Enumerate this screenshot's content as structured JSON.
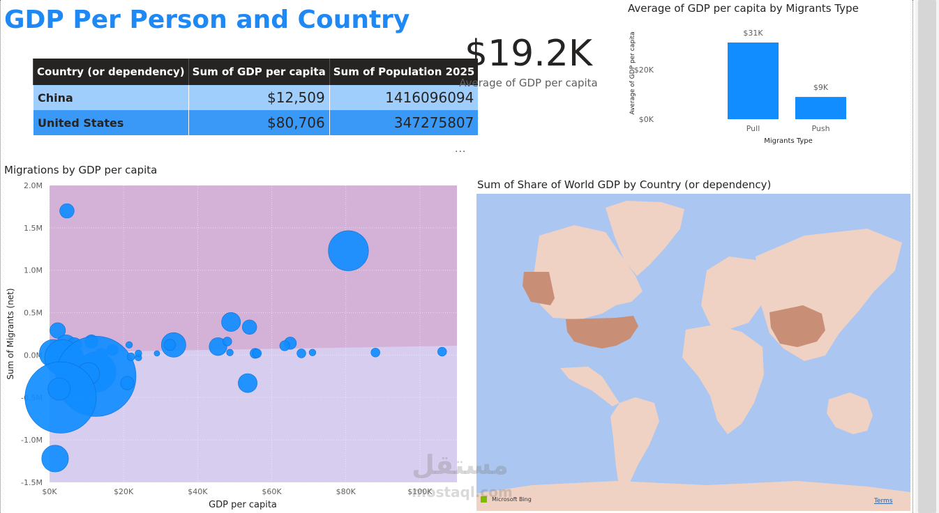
{
  "page_title": "GDP Per Person and Country",
  "table": {
    "headers": [
      "Country (or dependency)",
      "Sum of GDP per capita",
      "Sum of Population 2025"
    ],
    "rows": [
      {
        "country": "China",
        "gdp": "$12,509",
        "population": "1416096094"
      },
      {
        "country": "United States",
        "gdp": "$80,706",
        "population": "347275807"
      }
    ]
  },
  "kpi": {
    "value": "$19.2K",
    "label": "Average of GDP per capita"
  },
  "visual_menu": "...",
  "bar_chart": {
    "title": "Average of GDP per capita by Migrants Type",
    "chart_data": {
      "type": "bar",
      "title": "Average of GDP per capita by Migrants Type",
      "categories": [
        "Pull",
        "Push"
      ],
      "values": [
        31000,
        9000
      ],
      "data_labels": [
        "$31K",
        "$9K"
      ],
      "xlabel": "Migrants Type",
      "ylabel": "Average of GDP per capita",
      "yticks": [
        "$0K",
        "$20K"
      ],
      "ylim": [
        0,
        31000
      ],
      "color": "#118dff"
    }
  },
  "scatter_chart": {
    "title": "Migrations by GDP per capita",
    "chart_data": {
      "type": "scatter",
      "title": "Migrations by GDP per capita",
      "xlabel": "GDP per capita",
      "ylabel": "Sum of Migrants (net)",
      "xlim": [
        0,
        110000
      ],
      "ylim": [
        -1500000,
        2000000
      ],
      "xticks": [
        0,
        20000,
        40000,
        60000,
        80000,
        100000
      ],
      "xtick_labels": [
        "$0K",
        "$20K",
        "$40K",
        "$60K",
        "$80K",
        "$100K"
      ],
      "yticks": [
        2000000,
        1500000,
        1000000,
        500000,
        0,
        -500000,
        -1000000,
        -1500000
      ],
      "ytick_labels": [
        "2.0M",
        "1.5M",
        "1.0M",
        "0.5M",
        "0.0M",
        "-0.5M",
        "-1.0M",
        "-1.5M"
      ],
      "color": "#118dff",
      "band_colors": {
        "above": "#d4b2d8",
        "below": "#d7cdee"
      },
      "band_boundary": [
        [
          0,
          30000
        ],
        [
          110000,
          110000
        ]
      ],
      "points": [
        {
          "x": 4700,
          "y": 1700000,
          "size": 1.3
        },
        {
          "x": 80700,
          "y": 1230000,
          "size": 3.6
        },
        {
          "x": 49000,
          "y": 390000,
          "size": 1.7
        },
        {
          "x": 54000,
          "y": 330000,
          "size": 1.3
        },
        {
          "x": 2200,
          "y": 290000,
          "size": 1.4
        },
        {
          "x": 11300,
          "y": 160000,
          "size": 1.2
        },
        {
          "x": 33500,
          "y": 120000,
          "size": 2.2
        },
        {
          "x": 45500,
          "y": 100000,
          "size": 1.6
        },
        {
          "x": 4500,
          "y": 120000,
          "size": 1.8
        },
        {
          "x": 6700,
          "y": 120000,
          "size": 1.3
        },
        {
          "x": 65000,
          "y": 140000,
          "size": 1.1
        },
        {
          "x": 63500,
          "y": 110000,
          "size": 0.9
        },
        {
          "x": 32500,
          "y": 120000,
          "size": 1.0
        },
        {
          "x": 48000,
          "y": 160000,
          "size": 0.8
        },
        {
          "x": 21500,
          "y": 120000,
          "size": 0.6
        },
        {
          "x": 17000,
          "y": 60000,
          "size": 1.0
        },
        {
          "x": 1000,
          "y": 20000,
          "size": 2.5
        },
        {
          "x": 3500,
          "y": -30000,
          "size": 3.2
        },
        {
          "x": 7000,
          "y": 0,
          "size": 1.4
        },
        {
          "x": 14000,
          "y": 10000,
          "size": 1.1
        },
        {
          "x": 12500,
          "y": -200000,
          "size": 3.6
        },
        {
          "x": 12509,
          "y": -250000,
          "size": 7.2
        },
        {
          "x": 10500,
          "y": -220000,
          "size": 2.0
        },
        {
          "x": 3000,
          "y": -500000,
          "size": 6.4
        },
        {
          "x": 2600,
          "y": -400000,
          "size": 2.0
        },
        {
          "x": 21000,
          "y": -330000,
          "size": 1.2
        },
        {
          "x": 53500,
          "y": -330000,
          "size": 1.7
        },
        {
          "x": 1500,
          "y": -1220000,
          "size": 2.4
        },
        {
          "x": 22000,
          "y": -20000,
          "size": 0.7
        },
        {
          "x": 24000,
          "y": -30000,
          "size": 0.6
        },
        {
          "x": 29000,
          "y": 20000,
          "size": 0.5
        },
        {
          "x": 55500,
          "y": 20000,
          "size": 0.9
        },
        {
          "x": 56000,
          "y": 20000,
          "size": 0.8
        },
        {
          "x": 68000,
          "y": 20000,
          "size": 0.8
        },
        {
          "x": 71000,
          "y": 30000,
          "size": 0.6
        },
        {
          "x": 88000,
          "y": 30000,
          "size": 0.8
        },
        {
          "x": 106000,
          "y": 40000,
          "size": 0.8
        },
        {
          "x": 24000,
          "y": 20000,
          "size": 0.6
        },
        {
          "x": 48700,
          "y": 30000,
          "size": 0.6
        }
      ]
    }
  },
  "map": {
    "title": "Sum of Share of World GDP by Country (or dependency)",
    "water_color": "#abc6f0",
    "land_color": "#efd2c4",
    "highlight_color": "#c88f76",
    "highlighted_countries": [
      "United States",
      "China"
    ],
    "bing_label": "Microsoft Bing",
    "terms_label": "Terms"
  },
  "watermark": {
    "text_ar": "مستقل",
    "text_en": "mostaql.com"
  }
}
